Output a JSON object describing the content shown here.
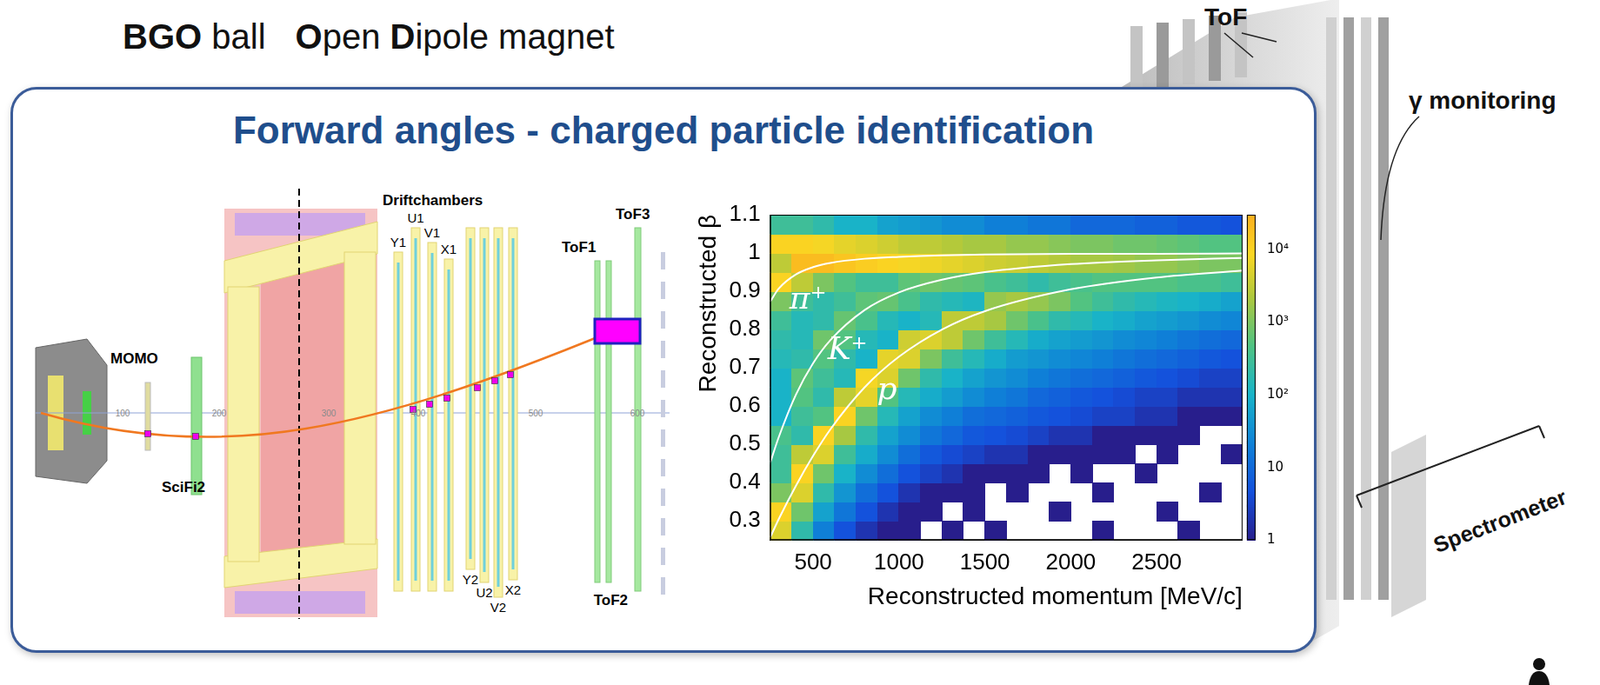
{
  "background": {
    "labels": [
      "BGO ball",
      "Open Dipole magnet"
    ],
    "tof": "ToF",
    "gamma_monitoring": "γ monitoring",
    "spectrometer": "Spectrometer"
  },
  "header": {
    "title": "Forward angles - charged particle identification"
  },
  "diagram": {
    "components": {
      "momo": "MOMO",
      "scifi": "SciFi2",
      "tof1": "ToF1",
      "tof2": "ToF2",
      "tof3": "ToF3"
    },
    "driftchambers": {
      "label": "Driftchambers",
      "planes_upstream": [
        "Y1",
        "U1",
        "V1",
        "X1"
      ],
      "planes_downstream": [
        "Y2",
        "U2",
        "V2",
        "X2"
      ]
    },
    "scale": [
      100,
      200,
      300,
      400,
      500,
      600
    ]
  },
  "chart_data": {
    "type": "heatmap",
    "x_label": "Reconstructed momentum [MeV/c]",
    "y_label": "Reconstructed β",
    "xlim": [
      250,
      3000
    ],
    "xticks": [
      500,
      1000,
      1500,
      2000,
      2500
    ],
    "ylim": [
      0.25,
      1.1
    ],
    "yticks": [
      0.3,
      0.4,
      0.5,
      0.6,
      0.7,
      0.8,
      0.9,
      1,
      1.1
    ],
    "grid": false,
    "heatmap": {
      "x_bins": [
        250,
        375,
        500,
        625,
        750,
        875,
        1000,
        1125,
        1250,
        1375,
        1500,
        1625,
        1750,
        1875,
        2000,
        2125,
        2250,
        2375,
        2500,
        2625,
        2750,
        2875,
        3000
      ],
      "y_bins": [
        0.25,
        0.3,
        0.35,
        0.4,
        0.45,
        0.5,
        0.55,
        0.6,
        0.65,
        0.7,
        0.75,
        0.8,
        0.85,
        0.9,
        0.95,
        1,
        1.05,
        1.1
      ],
      "counts": [
        [
          5000,
          200,
          20,
          5,
          2,
          1,
          1,
          0,
          1,
          0,
          1,
          0,
          0,
          0,
          0,
          1,
          0,
          0,
          0,
          1,
          0,
          0
        ],
        [
          10000,
          800,
          60,
          15,
          5,
          2,
          1,
          1,
          0,
          1,
          0,
          0,
          0,
          1,
          0,
          0,
          0,
          0,
          1,
          0,
          0,
          0
        ],
        [
          1000,
          5000,
          200,
          40,
          12,
          5,
          2,
          1,
          1,
          1,
          0,
          1,
          0,
          0,
          0,
          1,
          0,
          0,
          0,
          0,
          1,
          0
        ],
        [
          300,
          10000,
          800,
          100,
          30,
          12,
          5,
          3,
          2,
          1,
          1,
          1,
          1,
          0,
          1,
          0,
          0,
          1,
          0,
          0,
          0,
          0
        ],
        [
          300,
          3000,
          5000,
          300,
          80,
          30,
          12,
          6,
          4,
          3,
          2,
          2,
          1,
          1,
          1,
          1,
          1,
          0,
          1,
          0,
          0,
          1
        ],
        [
          400,
          200,
          10000,
          2000,
          200,
          60,
          30,
          15,
          10,
          6,
          5,
          4,
          3,
          2,
          2,
          1,
          1,
          1,
          1,
          1,
          0,
          0
        ],
        [
          100,
          300,
          500,
          10000,
          800,
          150,
          60,
          30,
          20,
          12,
          10,
          8,
          6,
          5,
          4,
          3,
          3,
          2,
          2,
          1,
          1,
          1
        ],
        [
          100,
          500,
          200,
          3000,
          6000,
          500,
          150,
          80,
          50,
          30,
          20,
          15,
          10,
          8,
          6,
          5,
          4,
          3,
          3,
          2,
          2,
          2
        ],
        [
          100,
          600,
          300,
          150,
          8000,
          5000,
          800,
          200,
          100,
          60,
          40,
          30,
          20,
          15,
          12,
          10,
          8,
          6,
          5,
          4,
          3,
          3
        ],
        [
          150,
          200,
          500,
          200,
          100,
          6000,
          5000,
          1000,
          300,
          150,
          80,
          50,
          40,
          30,
          25,
          20,
          15,
          12,
          10,
          8,
          6,
          5
        ],
        [
          200,
          150,
          800,
          500,
          150,
          100,
          4000,
          5000,
          3000,
          800,
          300,
          150,
          80,
          60,
          50,
          40,
          30,
          25,
          20,
          15,
          12,
          10
        ],
        [
          300,
          150,
          200,
          700,
          400,
          150,
          100,
          150,
          3000,
          3000,
          2000,
          800,
          400,
          200,
          150,
          100,
          80,
          60,
          50,
          40,
          30,
          25
        ],
        [
          1000,
          300,
          200,
          300,
          600,
          700,
          400,
          200,
          150,
          120,
          1500,
          2000,
          1500,
          1000,
          500,
          300,
          200,
          150,
          120,
          100,
          80,
          60
        ],
        [
          10000,
          3000,
          1000,
          500,
          300,
          300,
          600,
          800,
          700,
          600,
          400,
          300,
          200,
          300,
          400,
          500,
          500,
          500,
          500,
          400,
          400,
          300
        ],
        [
          3000,
          20000,
          20000,
          15000,
          12000,
          10000,
          8000,
          7000,
          6000,
          5000,
          4000,
          3500,
          3000,
          2500,
          2000,
          2000,
          1800,
          1500,
          1500,
          1200,
          1000,
          1000
        ],
        [
          10000,
          10000,
          8000,
          6000,
          5000,
          4000,
          3000,
          3000,
          2500,
          2000,
          2000,
          1500,
          1500,
          1200,
          1000,
          1000,
          800,
          800,
          700,
          600,
          500,
          500
        ],
        [
          300,
          300,
          200,
          100,
          100,
          60,
          50,
          40,
          30,
          30,
          20,
          20,
          15,
          15,
          10,
          10,
          10,
          8,
          8,
          6,
          6,
          5
        ]
      ]
    },
    "colorbar": {
      "range": [
        1,
        30000
      ],
      "log": true,
      "ticks": [
        1,
        10,
        {
          "value": 100,
          "label": "10²"
        },
        {
          "value": 1000,
          "label": "10³"
        },
        {
          "value": 10000,
          "label": "10⁴"
        }
      ]
    },
    "series": [
      {
        "color": "#ffffff",
        "line_style": "solid",
        "x": [
          250,
          300,
          400,
          500,
          600,
          800,
          1000,
          1250,
          1500,
          2000,
          2500,
          3000
        ],
        "values": [
          0.873,
          0.907,
          0.944,
          0.963,
          0.974,
          0.985,
          0.99,
          0.994,
          0.996,
          0.998,
          0.998,
          0.999
        ]
      },
      {
        "color": "#ffffff",
        "line_style": "solid",
        "x": [
          250,
          300,
          400,
          500,
          600,
          800,
          1000,
          1250,
          1500,
          2000,
          2500,
          3000
        ],
        "values": [
          0.452,
          0.519,
          0.63,
          0.712,
          0.772,
          0.851,
          0.897,
          0.93,
          0.95,
          0.971,
          0.981,
          0.987
        ]
      },
      {
        "color": "#ffffff",
        "line_style": "solid",
        "x": [
          250,
          300,
          400,
          500,
          600,
          800,
          1000,
          1250,
          1500,
          2000,
          2500,
          3000
        ],
        "values": [
          0.257,
          0.305,
          0.392,
          0.47,
          0.539,
          0.649,
          0.729,
          0.8,
          0.848,
          0.905,
          0.936,
          0.954
        ]
      }
    ],
    "annotations": [
      {
        "text": "π⁺",
        "x": 470,
        "y": 0.875
      },
      {
        "text": "K⁺",
        "x": 700,
        "y": 0.745
      },
      {
        "text": "p",
        "x": 930,
        "y": 0.64
      }
    ]
  }
}
